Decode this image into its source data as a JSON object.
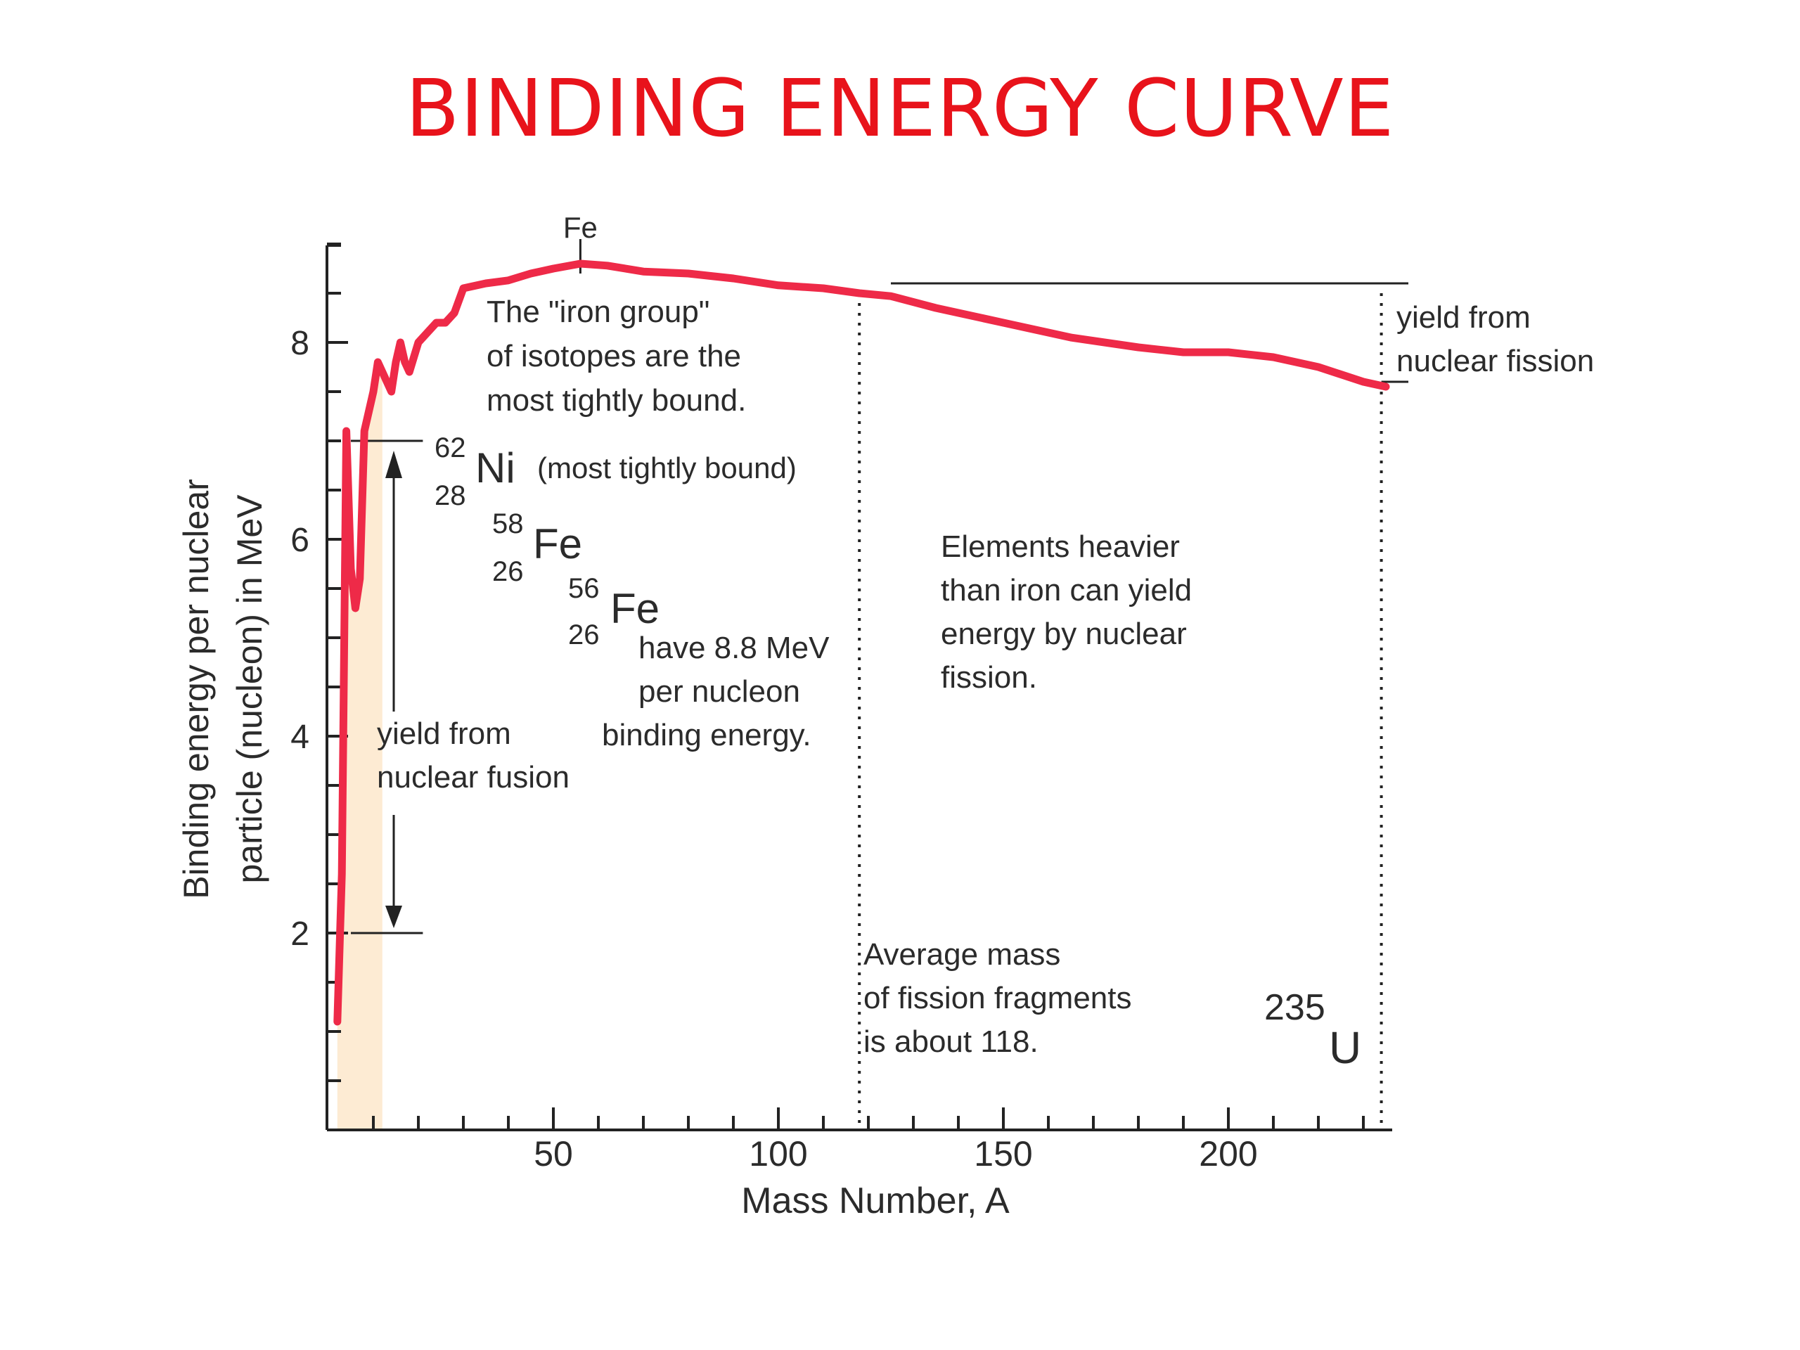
{
  "title": "BINDING ENERGY CURVE",
  "colors": {
    "title": "#e8131b",
    "curve": "#ee2a48",
    "fill": "#fdebd3",
    "axis": "#222222",
    "text": "#2b2b2b"
  },
  "chart_data": {
    "type": "line",
    "title": "",
    "xlabel": "Mass Number, A",
    "ylabel_lines": [
      "Binding energy per nuclear",
      "particle (nucleon) in MeV"
    ],
    "xlim": [
      0,
      237
    ],
    "ylim": [
      0,
      9
    ],
    "x_ticks": [
      50,
      100,
      150,
      200
    ],
    "y_ticks": [
      2,
      4,
      6,
      8
    ],
    "x_minor_step": 10,
    "y_minor_step": 0.5,
    "grid": false,
    "legend": "none",
    "series": [
      {
        "x": [
          2,
          3,
          4,
          5,
          6,
          7,
          8,
          10,
          11,
          12,
          14,
          15,
          16,
          17,
          18,
          20,
          22,
          24,
          26,
          28,
          30,
          35,
          40,
          45,
          50,
          56,
          62,
          70,
          80,
          90,
          100,
          110,
          118,
          125,
          135,
          150,
          165,
          180,
          190,
          200,
          210,
          220,
          230,
          235
        ],
        "y": [
          1.1,
          2.6,
          7.1,
          5.7,
          5.3,
          5.6,
          7.1,
          7.5,
          7.8,
          7.7,
          7.5,
          7.8,
          8.0,
          7.8,
          7.7,
          8.0,
          8.1,
          8.2,
          8.2,
          8.3,
          8.55,
          8.6,
          8.63,
          8.7,
          8.75,
          8.8,
          8.78,
          8.72,
          8.7,
          8.65,
          8.58,
          8.55,
          8.5,
          8.47,
          8.35,
          8.2,
          8.05,
          7.95,
          7.9,
          7.9,
          7.85,
          7.75,
          7.6,
          7.55
        ]
      }
    ],
    "vlines": [
      {
        "x": 118,
        "style": "dotted"
      },
      {
        "x": 234,
        "style": "dotted"
      }
    ],
    "hlines": [
      {
        "y": 8.6,
        "x_from": 125,
        "x_to": 240
      },
      {
        "y": 7.6,
        "x_from": 234,
        "x_to": 240
      },
      {
        "y": 7.0,
        "x_from": 5,
        "x_to": 21
      },
      {
        "y": 2.0,
        "x_from": 5,
        "x_to": 21
      }
    ],
    "fe_marker": {
      "x": 56,
      "label": "Fe"
    },
    "annotations": {
      "iron_group": [
        "The \"iron group\"",
        "of isotopes are the",
        "most tightly bound."
      ],
      "ni62": {
        "mass": "62",
        "atomic": "28",
        "symbol": "Ni",
        "note": "(most tightly bound)"
      },
      "fe58": {
        "mass": "58",
        "atomic": "26",
        "symbol": "Fe"
      },
      "fe56": {
        "mass": "56",
        "atomic": "26",
        "symbol": "Fe"
      },
      "binding": [
        "have 8.8 MeV",
        "per nucleon",
        "binding energy."
      ],
      "fusion": [
        "yield from",
        "nuclear fusion"
      ],
      "fission": [
        "yield from",
        "nuclear fission"
      ],
      "heavier": [
        "Elements heavier",
        "than iron can yield",
        "energy by nuclear",
        "fission."
      ],
      "average": [
        "Average mass",
        "of fission fragments",
        "is about 118."
      ],
      "u235": {
        "mass": "235",
        "symbol": "U"
      }
    }
  }
}
